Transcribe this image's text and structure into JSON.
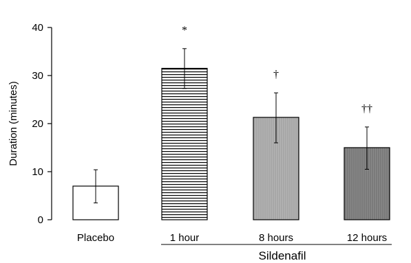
{
  "chart_data": {
    "type": "bar",
    "ylabel": "Duration (minutes)",
    "xlabel": "",
    "ylim": [
      0,
      40
    ],
    "yticks": [
      0,
      10,
      20,
      30,
      40
    ],
    "grid": false,
    "categories": [
      "Placebo",
      "1 hour",
      "8 hours",
      "12 hours"
    ],
    "values": [
      7,
      31.5,
      21.3,
      15
    ],
    "error_low": [
      3.5,
      27.3,
      16,
      10.5
    ],
    "error_high": [
      10.4,
      35.6,
      26.4,
      19.3
    ],
    "significance": [
      "",
      "*",
      "†",
      "††"
    ],
    "fills": [
      "white",
      "horizontal-stripes",
      "light-gray-vertical",
      "dark-gray-vertical"
    ],
    "group_label": "Sildenafil",
    "group_categories": [
      "1 hour",
      "8 hours",
      "12 hours"
    ]
  }
}
